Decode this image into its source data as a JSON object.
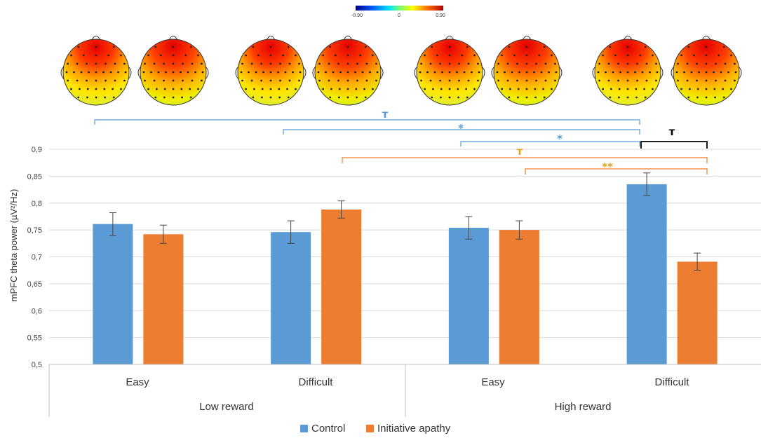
{
  "chart_data": {
    "type": "bar",
    "ylabel": "mPFC theta power (µV²/Hz)",
    "ylim": [
      0.5,
      0.9
    ],
    "yticks": [
      "0,5",
      "0,55",
      "0,6",
      "0,65",
      "0,7",
      "0,75",
      "0,8",
      "0,85",
      "0,9"
    ],
    "groups": [
      "Low reward",
      "High reward"
    ],
    "categories": [
      "Easy",
      "Difficult",
      "Easy",
      "Difficult"
    ],
    "series": [
      {
        "name": "Control",
        "color": "#5b9bd5",
        "values": [
          0.761,
          0.746,
          0.754,
          0.835
        ],
        "errors": [
          0.021,
          0.021,
          0.021,
          0.021
        ]
      },
      {
        "name": "Initiative apathy",
        "color": "#ed7d31",
        "values": [
          0.742,
          0.788,
          0.75,
          0.691
        ],
        "errors": [
          0.017,
          0.016,
          0.017,
          0.016
        ]
      }
    ],
    "colorbar": {
      "min_label": "-0.90",
      "mid_label": "0",
      "max_label": "0.90"
    },
    "significance": [
      {
        "label": "ᴛ",
        "color": "#5b9bd5"
      },
      {
        "label": "*",
        "color": "#5b9bd5"
      },
      {
        "label": "*",
        "color": "#5b9bd5"
      },
      {
        "label": "ᴛ",
        "color": "#000000"
      },
      {
        "label": "ᴛ",
        "color": "#e3a21a"
      },
      {
        "label": "**",
        "color": "#e3a21a"
      }
    ]
  }
}
